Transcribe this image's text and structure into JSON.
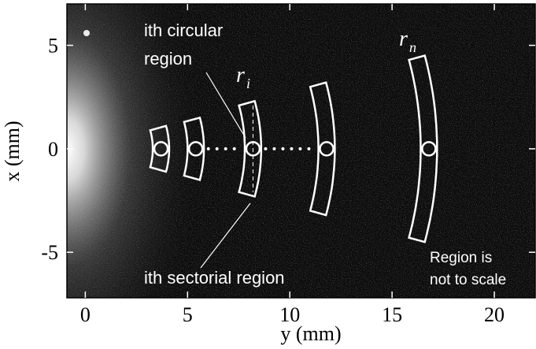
{
  "chart_data": {
    "type": "image",
    "xlabel": "y (mm)",
    "ylabel": "x (mm)",
    "xlim": [
      -0.9,
      22
    ],
    "ylim": [
      -7.2,
      7.0
    ],
    "xticks": [
      0,
      5,
      10,
      15,
      20
    ],
    "yticks": [
      5,
      0,
      -5
    ],
    "radii": [
      3.7,
      5.4,
      8.2,
      11.8,
      16.8
    ],
    "half_heights": [
      1.0,
      1.4,
      2.2,
      3.1,
      4.4
    ],
    "sector_width": 0.8,
    "annotations": {
      "circular": [
        "ith circular",
        "region"
      ],
      "r_i": "r",
      "r_i_sub": "i",
      "r_n": "r",
      "r_n_sub": "n",
      "sectorial": "ith sectorial region",
      "scale_note": [
        "Region is",
        "not to scale"
      ]
    }
  }
}
